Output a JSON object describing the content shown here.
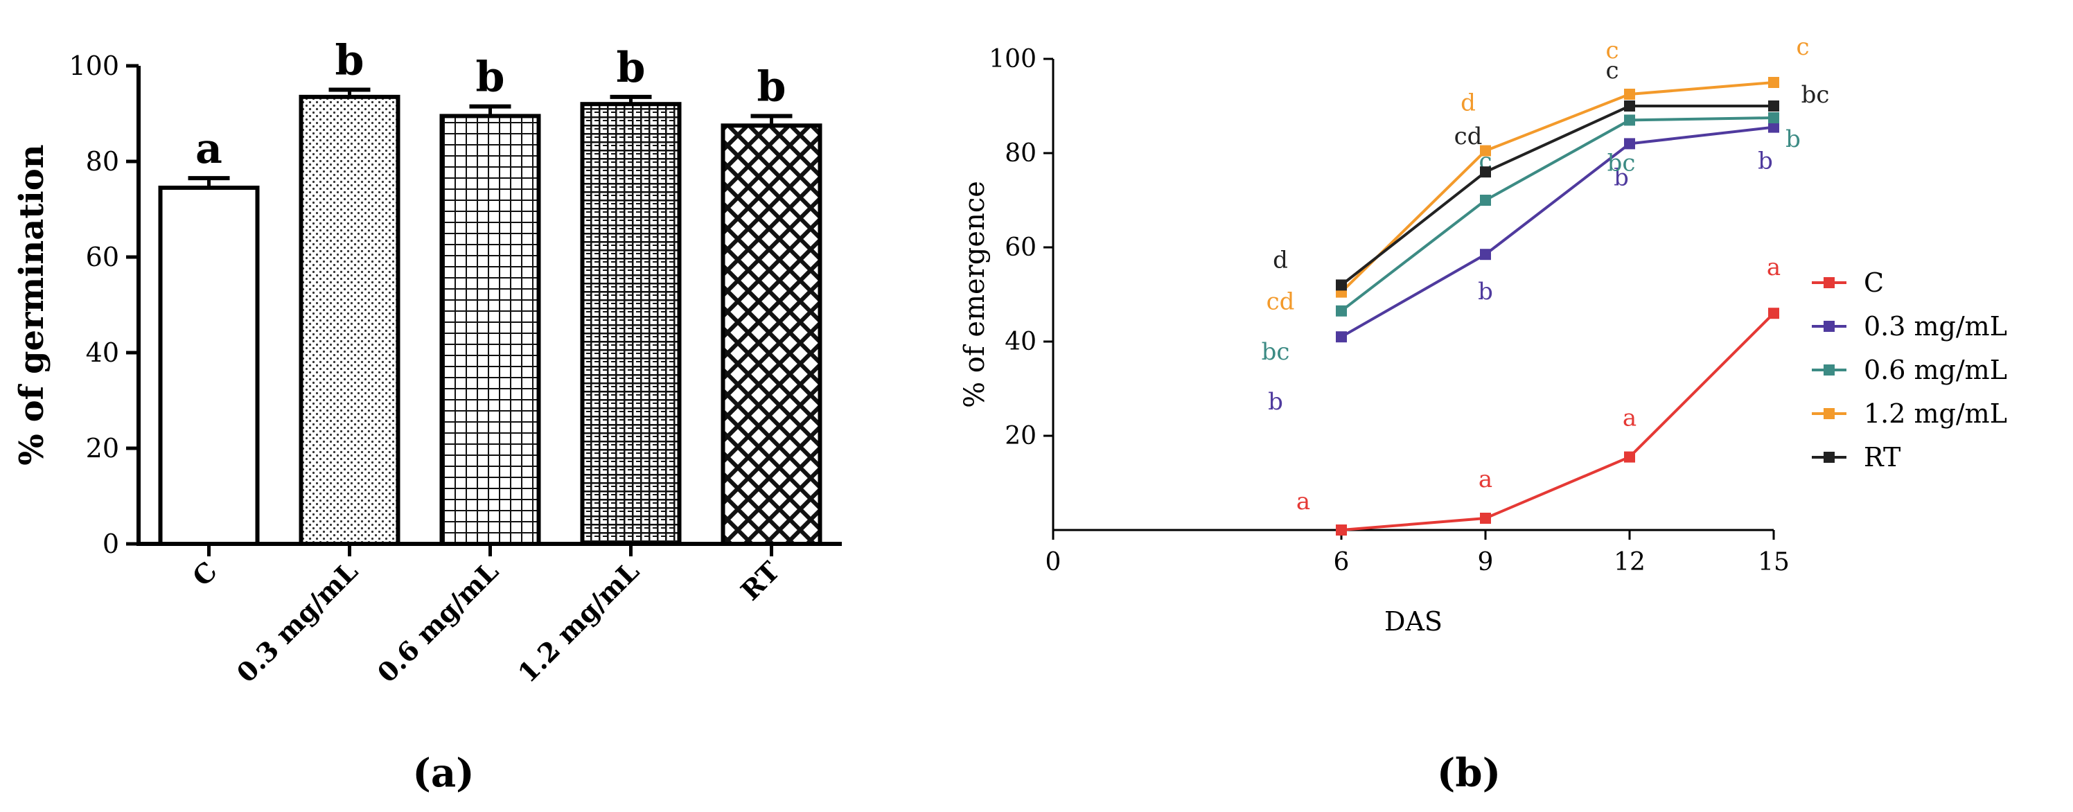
{
  "panels": {
    "a": {
      "label": "(a)"
    },
    "b": {
      "label": "(b)"
    }
  },
  "chart_data": [
    {
      "id": "a",
      "type": "bar",
      "title": "",
      "xlabel": "",
      "ylabel": "% of germination",
      "ylim": [
        0,
        100
      ],
      "yticks": [
        "0",
        "20",
        "40",
        "60",
        "80",
        "100"
      ],
      "categories": [
        "C",
        "0.3 mg/mL",
        "0.6 mg/mL",
        "1.2 mg/mL",
        "RT"
      ],
      "values": [
        74.5,
        93.5,
        89.5,
        92.0,
        87.5
      ],
      "errors": [
        2.0,
        1.5,
        2.0,
        1.5,
        2.0
      ],
      "letters": [
        "a",
        "b",
        "b",
        "b",
        "b"
      ],
      "patterns": [
        "none",
        "dots",
        "fine-grid",
        "dense-grid",
        "crosshatch"
      ],
      "grid": false
    },
    {
      "id": "b",
      "type": "line",
      "title": "",
      "xlabel": "DAS",
      "ylabel": "% of emergence",
      "xlim": [
        0,
        15
      ],
      "ylim": [
        0,
        100
      ],
      "xticks": [
        "0",
        "6",
        "9",
        "12",
        "15"
      ],
      "yticks": [
        "20",
        "40",
        "60",
        "80",
        "100"
      ],
      "x": [
        6,
        9,
        12,
        15
      ],
      "legend_position": "right",
      "series": [
        {
          "name": "C",
          "color": "#e53935",
          "values": [
            0,
            2.5,
            15.5,
            46
          ],
          "letters": [
            "a",
            "a",
            "a",
            "a"
          ]
        },
        {
          "name": "0.3 mg/mL",
          "color": "#4f3a9e",
          "values": [
            41,
            58.5,
            82,
            85.5
          ],
          "letters": [
            "b",
            "b",
            "b",
            "b"
          ]
        },
        {
          "name": "0.6 mg/mL",
          "color": "#3c8b84",
          "values": [
            46.5,
            70,
            87,
            87.5
          ],
          "letters": [
            "bc",
            "c",
            "bc",
            "b"
          ]
        },
        {
          "name": "1.2 mg/mL",
          "color": "#f39a2b",
          "values": [
            50.5,
            80.5,
            92.5,
            95
          ],
          "letters": [
            "cd",
            "d",
            "c",
            "c"
          ]
        },
        {
          "name": "RT",
          "color": "#222222",
          "values": [
            52,
            76,
            90,
            90
          ],
          "letters": [
            "d",
            "cd",
            "c",
            "bc"
          ]
        }
      ],
      "grid": false
    }
  ]
}
